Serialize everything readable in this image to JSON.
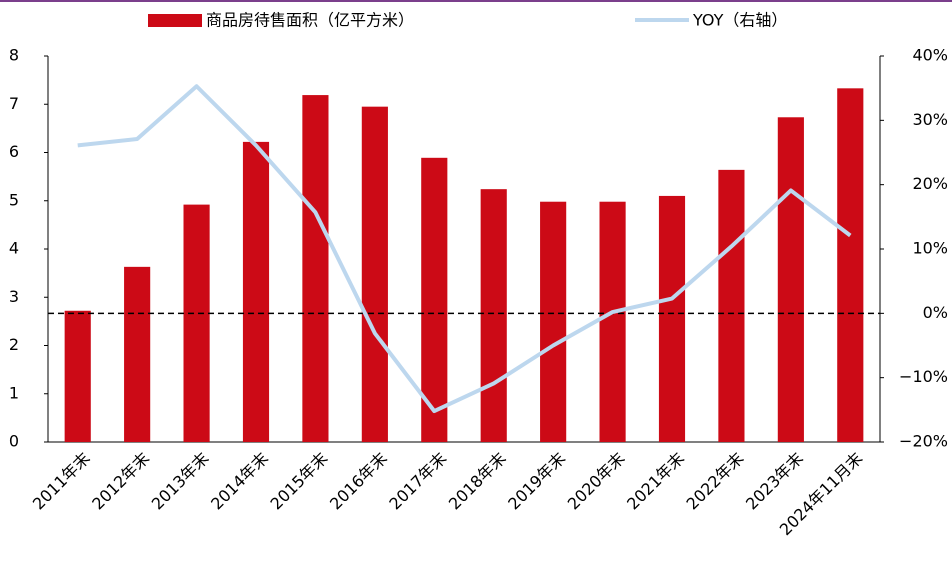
{
  "chart_data": {
    "type": "bar-line",
    "categories": [
      "2011年末",
      "2012年末",
      "2013年末",
      "2014年末",
      "2015年末",
      "2016年末",
      "2017年末",
      "2018年末",
      "2019年末",
      "2020年末",
      "2021年末",
      "2022年末",
      "2023年末",
      "2024年11月末"
    ],
    "series": [
      {
        "name": "商品房待售面积（亿平方米）",
        "type": "bar",
        "color": "#cc0a16",
        "values": [
          2.72,
          3.63,
          4.92,
          6.22,
          7.19,
          6.95,
          5.89,
          5.24,
          4.98,
          4.98,
          5.1,
          5.64,
          6.73,
          7.33
        ]
      },
      {
        "name": "YOY（右轴）",
        "type": "line",
        "axis": "y2",
        "color": "#bdd7ee",
        "values": [
          26.1,
          27.1,
          35.3,
          26.1,
          15.7,
          -3.1,
          -15.2,
          -10.9,
          -5.0,
          0.2,
          2.3,
          10.4,
          19.1,
          12.1
        ]
      }
    ],
    "ylim": [
      0,
      8
    ],
    "yticks": [
      0,
      1,
      2,
      3,
      4,
      5,
      6,
      7,
      8
    ],
    "y2lim": [
      -20,
      40
    ],
    "y2ticks": [
      {
        "value": -20,
        "label": "−20%"
      },
      {
        "value": -10,
        "label": "−10%"
      },
      {
        "value": 0,
        "label": "0%"
      },
      {
        "value": 10,
        "label": "10%"
      },
      {
        "value": 20,
        "label": "20%"
      },
      {
        "value": 30,
        "label": "30%"
      },
      {
        "value": 40,
        "label": "40%"
      }
    ],
    "reference_line_y2": 0
  }
}
